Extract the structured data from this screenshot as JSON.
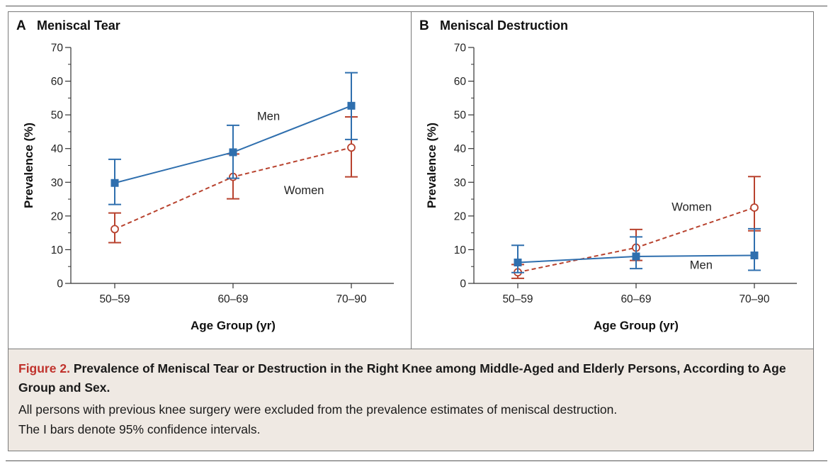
{
  "colors": {
    "men": "#2f6fae",
    "women": "#b8422e",
    "axis": "#333333",
    "caption_bg": "#efe9e3"
  },
  "chart_data": [
    {
      "type": "line",
      "panel_letter": "A",
      "title": "Meniscal Tear",
      "xlabel": "Age Group (yr)",
      "ylabel": "Prevalence (%)",
      "categories": [
        "50–59",
        "60–69",
        "70–90"
      ],
      "ylim": [
        0,
        70
      ],
      "yticks": [
        0,
        10,
        20,
        30,
        40,
        50,
        60,
        70
      ],
      "series": [
        {
          "name": "Men",
          "style": "solid",
          "marker": "filled-square",
          "values": [
            29.8,
            38.9,
            52.7
          ],
          "ci_low": [
            23.4,
            31.2,
            42.7
          ],
          "ci_high": [
            36.8,
            46.9,
            62.5
          ]
        },
        {
          "name": "Women",
          "style": "dashed",
          "marker": "open-circle",
          "values": [
            16.1,
            31.6,
            40.3
          ],
          "ci_low": [
            12.1,
            25.1,
            31.6
          ],
          "ci_high": [
            20.9,
            38.4,
            49.4
          ]
        }
      ],
      "annotations": [
        {
          "text": "Men",
          "x_cat": 1.3,
          "y": 48.5
        },
        {
          "text": "Women",
          "x_cat": 1.6,
          "y": 26.5
        }
      ]
    },
    {
      "type": "line",
      "panel_letter": "B",
      "title": "Meniscal Destruction",
      "xlabel": "Age Group (yr)",
      "ylabel": "Prevalence (%)",
      "categories": [
        "50–59",
        "60–69",
        "70–90"
      ],
      "ylim": [
        0,
        70
      ],
      "yticks": [
        0,
        10,
        20,
        30,
        40,
        50,
        60,
        70
      ],
      "series": [
        {
          "name": "Men",
          "style": "solid",
          "marker": "filled-square",
          "values": [
            6.2,
            8.0,
            8.3
          ],
          "ci_low": [
            3.2,
            4.4,
            3.9
          ],
          "ci_high": [
            11.3,
            13.8,
            16.2
          ]
        },
        {
          "name": "Women",
          "style": "dashed",
          "marker": "open-circle",
          "values": [
            3.3,
            10.6,
            22.5
          ],
          "ci_low": [
            1.5,
            6.8,
            15.6
          ],
          "ci_high": [
            5.6,
            16.0,
            31.7
          ]
        }
      ],
      "annotations": [
        {
          "text": "Women",
          "x_cat": 1.47,
          "y": 21.5
        },
        {
          "text": "Men",
          "x_cat": 1.55,
          "y": 4.3
        }
      ]
    }
  ],
  "caption": {
    "label": "Figure 2.",
    "title": "Prevalence of Meniscal Tear or Destruction in the Right Knee among Middle-Aged and Elderly Persons, According to Age Group and Sex.",
    "line1": "All persons with previous knee surgery were excluded from the prevalence estimates of meniscal destruction.",
    "line2": "The I bars denote 95% confidence intervals."
  }
}
